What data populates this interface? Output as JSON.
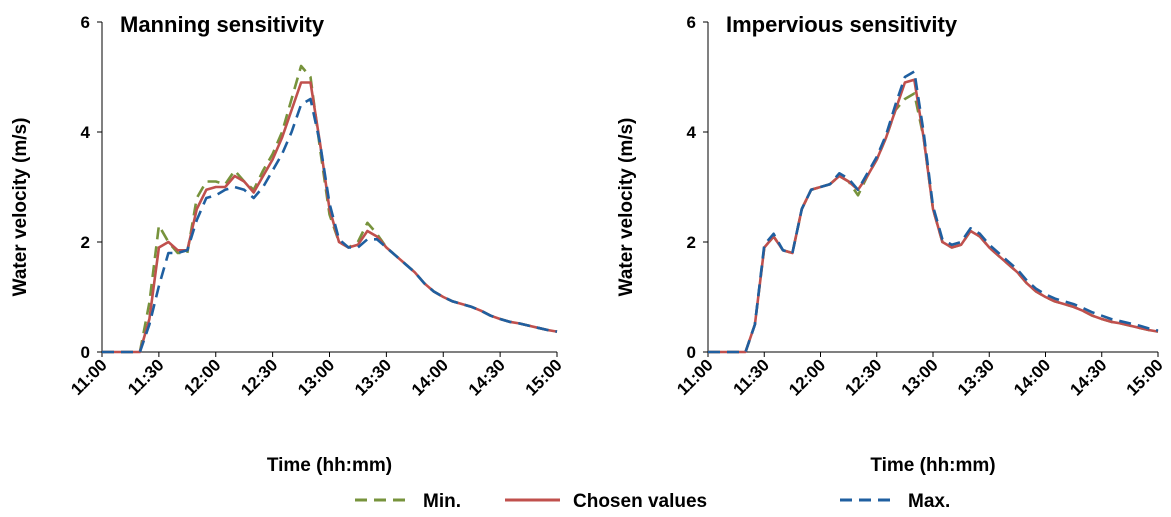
{
  "chart_data": [
    {
      "type": "line",
      "title": "Manning sensitivity",
      "xlabel": "Time (hh:mm)",
      "ylabel": "Water velocity (m/s)",
      "x": [
        "11:00",
        "11:05",
        "11:10",
        "11:15",
        "11:20",
        "11:25",
        "11:30",
        "11:35",
        "11:40",
        "11:45",
        "11:50",
        "11:55",
        "12:00",
        "12:05",
        "12:10",
        "12:15",
        "12:20",
        "12:25",
        "12:30",
        "12:35",
        "12:40",
        "12:45",
        "12:50",
        "12:55",
        "13:00",
        "13:05",
        "13:10",
        "13:15",
        "13:20",
        "13:25",
        "13:30",
        "13:35",
        "13:40",
        "13:45",
        "13:50",
        "13:55",
        "14:00",
        "14:05",
        "14:10",
        "14:15",
        "14:20",
        "14:25",
        "14:30",
        "14:35",
        "14:40",
        "14:45",
        "14:50",
        "14:55",
        "15:00"
      ],
      "series": [
        {
          "name": "Min.",
          "color": "#77933c",
          "linestyle": "dashed",
          "values": [
            0,
            0,
            0,
            0,
            0,
            0.9,
            2.3,
            2.0,
            1.8,
            1.8,
            2.8,
            3.1,
            3.1,
            3.05,
            3.3,
            3.1,
            2.95,
            3.3,
            3.6,
            4.0,
            4.6,
            5.2,
            5.0,
            3.7,
            2.5,
            2.0,
            1.9,
            2.0,
            2.35,
            2.15,
            1.9,
            1.75,
            1.6,
            1.45,
            1.25,
            1.1,
            1.0,
            0.92,
            0.87,
            0.82,
            0.75,
            0.66,
            0.6,
            0.55,
            0.52,
            0.48,
            0.44,
            0.4,
            0.37
          ]
        },
        {
          "name": "Chosen values",
          "color": "#c0504d",
          "linestyle": "solid",
          "values": [
            0,
            0,
            0,
            0,
            0,
            0.6,
            1.9,
            2.0,
            1.85,
            1.85,
            2.6,
            2.95,
            3.0,
            3.0,
            3.2,
            3.1,
            2.9,
            3.2,
            3.5,
            3.9,
            4.4,
            4.9,
            4.9,
            3.8,
            2.6,
            2.0,
            1.9,
            1.95,
            2.2,
            2.1,
            1.9,
            1.75,
            1.6,
            1.45,
            1.25,
            1.1,
            1.0,
            0.92,
            0.87,
            0.82,
            0.75,
            0.66,
            0.6,
            0.55,
            0.52,
            0.48,
            0.44,
            0.4,
            0.37
          ]
        },
        {
          "name": "Max.",
          "color": "#1f5fa0",
          "linestyle": "dashed",
          "values": [
            0,
            0,
            0,
            0,
            0,
            0.5,
            1.2,
            1.8,
            1.8,
            1.85,
            2.4,
            2.8,
            2.85,
            2.95,
            3.0,
            2.95,
            2.8,
            3.0,
            3.3,
            3.6,
            4.0,
            4.5,
            4.6,
            3.8,
            2.7,
            2.05,
            1.9,
            1.9,
            2.05,
            2.05,
            1.9,
            1.75,
            1.6,
            1.45,
            1.25,
            1.1,
            1.0,
            0.92,
            0.87,
            0.82,
            0.75,
            0.66,
            0.6,
            0.55,
            0.52,
            0.48,
            0.44,
            0.4,
            0.37
          ]
        }
      ],
      "xlim": [
        "11:00",
        "15:00"
      ],
      "xticks": [
        "11:00",
        "11:30",
        "12:00",
        "12:30",
        "13:00",
        "13:30",
        "14:00",
        "14:30",
        "15:00"
      ],
      "ylim": [
        0,
        6
      ],
      "yticks": [
        0,
        2,
        4,
        6
      ]
    },
    {
      "type": "line",
      "title": "Impervious sensitivity",
      "xlabel": "Time (hh:mm)",
      "ylabel": "Water velocity (m/s)",
      "x": [
        "11:00",
        "11:05",
        "11:10",
        "11:15",
        "11:20",
        "11:25",
        "11:30",
        "11:35",
        "11:40",
        "11:45",
        "11:50",
        "11:55",
        "12:00",
        "12:05",
        "12:10",
        "12:15",
        "12:20",
        "12:25",
        "12:30",
        "12:35",
        "12:40",
        "12:45",
        "12:50",
        "12:55",
        "13:00",
        "13:05",
        "13:10",
        "13:15",
        "13:20",
        "13:25",
        "13:30",
        "13:35",
        "13:40",
        "13:45",
        "13:50",
        "13:55",
        "14:00",
        "14:05",
        "14:10",
        "14:15",
        "14:20",
        "14:25",
        "14:30",
        "14:35",
        "14:40",
        "14:45",
        "14:50",
        "14:55",
        "15:00"
      ],
      "series": [
        {
          "color": "#77933c",
          "linestyle": "dashed",
          "values": [
            0,
            0,
            0,
            0,
            0,
            0.5,
            1.9,
            2.1,
            1.85,
            1.8,
            2.6,
            2.95,
            3.0,
            3.05,
            3.2,
            3.1,
            2.85,
            3.2,
            3.5,
            3.9,
            4.4,
            4.6,
            4.7,
            3.9,
            2.6,
            2.0,
            1.9,
            1.95,
            2.2,
            2.1,
            1.9,
            1.75,
            1.6,
            1.45,
            1.25,
            1.1,
            1.0,
            0.92,
            0.87,
            0.82,
            0.75,
            0.66,
            0.6,
            0.55,
            0.52,
            0.48,
            0.44,
            0.4,
            0.37
          ]
        },
        {
          "color": "#c0504d",
          "linestyle": "solid",
          "values": [
            0,
            0,
            0,
            0,
            0,
            0.5,
            1.9,
            2.1,
            1.85,
            1.8,
            2.6,
            2.95,
            3.0,
            3.05,
            3.2,
            3.1,
            2.95,
            3.2,
            3.5,
            3.9,
            4.4,
            4.9,
            4.95,
            3.9,
            2.6,
            2.0,
            1.9,
            1.95,
            2.2,
            2.1,
            1.9,
            1.75,
            1.6,
            1.45,
            1.25,
            1.1,
            1.0,
            0.92,
            0.87,
            0.82,
            0.75,
            0.66,
            0.6,
            0.55,
            0.52,
            0.48,
            0.44,
            0.4,
            0.37
          ]
        },
        {
          "color": "#1f5fa0",
          "linestyle": "dashed",
          "values": [
            0,
            0,
            0,
            0,
            0,
            0.5,
            1.95,
            2.15,
            1.85,
            1.8,
            2.6,
            2.95,
            3.0,
            3.05,
            3.25,
            3.15,
            2.95,
            3.25,
            3.55,
            3.95,
            4.5,
            5.0,
            5.1,
            4.0,
            2.65,
            2.05,
            1.95,
            2.0,
            2.25,
            2.15,
            1.95,
            1.8,
            1.65,
            1.5,
            1.3,
            1.15,
            1.05,
            0.97,
            0.92,
            0.87,
            0.8,
            0.72,
            0.66,
            0.6,
            0.56,
            0.52,
            0.48,
            0.43,
            0.39
          ]
        }
      ],
      "xlim": [
        "11:00",
        "15:00"
      ],
      "xticks": [
        "11:00",
        "11:30",
        "12:00",
        "12:30",
        "13:00",
        "13:30",
        "14:00",
        "14:30",
        "15:00"
      ],
      "ylim": [
        0,
        6
      ],
      "yticks": [
        0,
        2,
        4,
        6
      ]
    }
  ]
}
